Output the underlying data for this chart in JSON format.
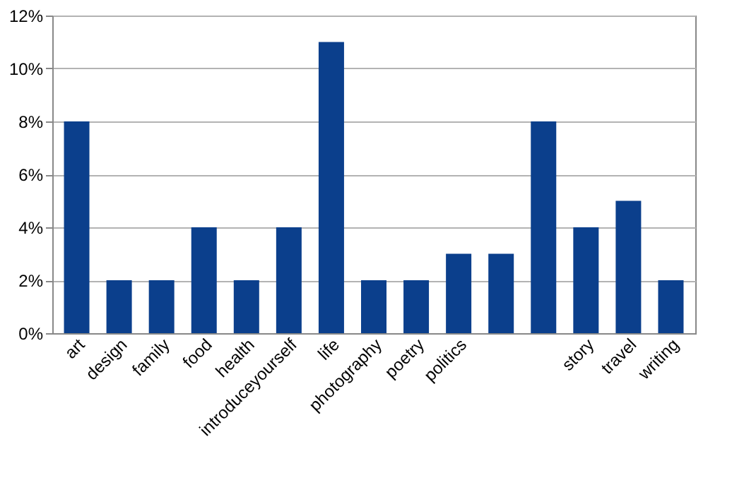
{
  "chart_data": {
    "type": "bar",
    "categories": [
      "art",
      "design",
      "family",
      "food",
      "health",
      "introduceyourself",
      "life",
      "photography",
      "poetry",
      "politics",
      null,
      null,
      "story",
      "travel",
      "writing"
    ],
    "values": [
      8,
      2,
      2,
      4,
      2,
      4,
      11,
      2,
      2,
      3,
      3,
      8,
      4,
      5,
      2
    ],
    "color": "#0b3f8c",
    "ylim": [
      0,
      12
    ],
    "yticks": [
      {
        "value": 0,
        "label": "0%"
      },
      {
        "value": 2,
        "label": "2%"
      },
      {
        "value": 4,
        "label": "4%"
      },
      {
        "value": 6,
        "label": "6%"
      },
      {
        "value": 8,
        "label": "8%"
      },
      {
        "value": 10,
        "label": "10%"
      },
      {
        "value": 12,
        "label": "12%"
      }
    ],
    "grid": "y"
  }
}
